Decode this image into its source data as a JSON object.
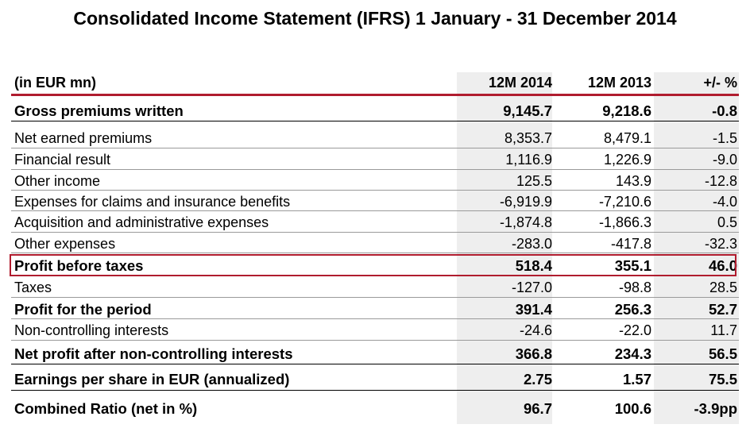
{
  "title": "Consolidated Income Statement (IFRS) 1 January - 31 December 2014",
  "accent_color": "#b01c2e",
  "header": {
    "label": "(in EUR mn)",
    "col1": "12M 2014",
    "col2": "12M 2013",
    "col3": "+/- %"
  },
  "rows": [
    {
      "label": "Gross premiums written",
      "v2014": "9,145.7",
      "v2013": "9,218.6",
      "change": "-0.8",
      "bold": true
    },
    {
      "label": "Net earned premiums",
      "v2014": "8,353.7",
      "v2013": "8,479.1",
      "change": "-1.5",
      "bold": false
    },
    {
      "label": "Financial result",
      "v2014": "1,116.9",
      "v2013": "1,226.9",
      "change": "-9.0",
      "bold": false
    },
    {
      "label": "Other income",
      "v2014": "125.5",
      "v2013": "143.9",
      "change": "-12.8",
      "bold": false
    },
    {
      "label": "Expenses for claims and insurance benefits",
      "v2014": "-6,919.9",
      "v2013": "-7,210.6",
      "change": "-4.0",
      "bold": false
    },
    {
      "label": "Acquisition and administrative expenses",
      "v2014": "-1,874.8",
      "v2013": "-1,866.3",
      "change": "0.5",
      "bold": false
    },
    {
      "label": "Other expenses",
      "v2014": "-283.0",
      "v2013": "-417.8",
      "change": "-32.3",
      "bold": false
    },
    {
      "label": "Profit before taxes",
      "v2014": "518.4",
      "v2013": "355.1",
      "change": "46.0",
      "bold": true
    },
    {
      "label": "Taxes",
      "v2014": "-127.0",
      "v2013": "-98.8",
      "change": "28.5",
      "bold": false
    },
    {
      "label": "Profit for the period",
      "v2014": "391.4",
      "v2013": "256.3",
      "change": "52.7",
      "bold": true
    },
    {
      "label": "Non-controlling interests",
      "v2014": "-24.6",
      "v2013": "-22.0",
      "change": "11.7",
      "bold": false
    },
    {
      "label": "Net profit after non-controlling interests",
      "v2014": "366.8",
      "v2013": "234.3",
      "change": "56.5",
      "bold": true
    },
    {
      "label": "Earnings per share in EUR (annualized)",
      "v2014": "2.75",
      "v2013": "1.57",
      "change": "75.5",
      "bold": true
    },
    {
      "label": "Combined Ratio (net in %)",
      "v2014": "96.7",
      "v2013": "100.6",
      "change": "-3.9pp",
      "bold": true
    }
  ]
}
